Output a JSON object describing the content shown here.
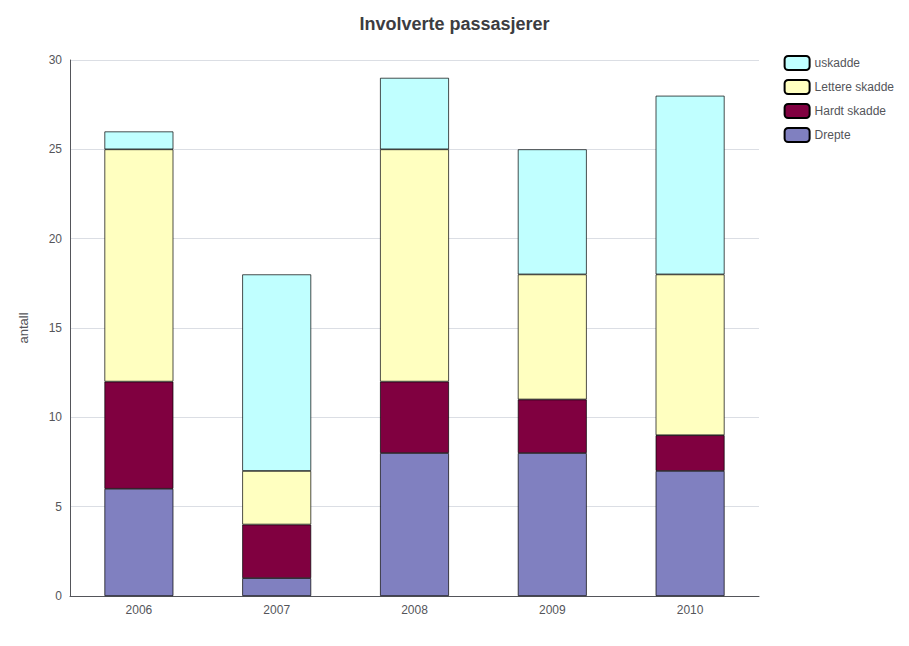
{
  "chart_data": {
    "type": "bar",
    "stacked": true,
    "title": "Involverte passasjerer",
    "ylabel": "antall",
    "categories": [
      "2006",
      "2007",
      "2008",
      "2009",
      "2010"
    ],
    "series": [
      {
        "name": "Drepte",
        "color": "#8080c0",
        "values": [
          6,
          1,
          8,
          8,
          7
        ]
      },
      {
        "name": "Hardt skadde",
        "color": "#800040",
        "values": [
          6,
          3,
          4,
          3,
          2
        ]
      },
      {
        "name": "Lettere skadde",
        "color": "#ffffc0",
        "values": [
          13,
          3,
          13,
          7,
          9
        ]
      },
      {
        "name": "uskadde",
        "color": "#c0ffff",
        "values": [
          1,
          11,
          4,
          7,
          10
        ]
      }
    ],
    "ylim": [
      0,
      30
    ],
    "yticks": [
      0,
      5,
      10,
      15,
      20,
      25,
      30
    ],
    "grid": true,
    "legend": "upper right"
  }
}
